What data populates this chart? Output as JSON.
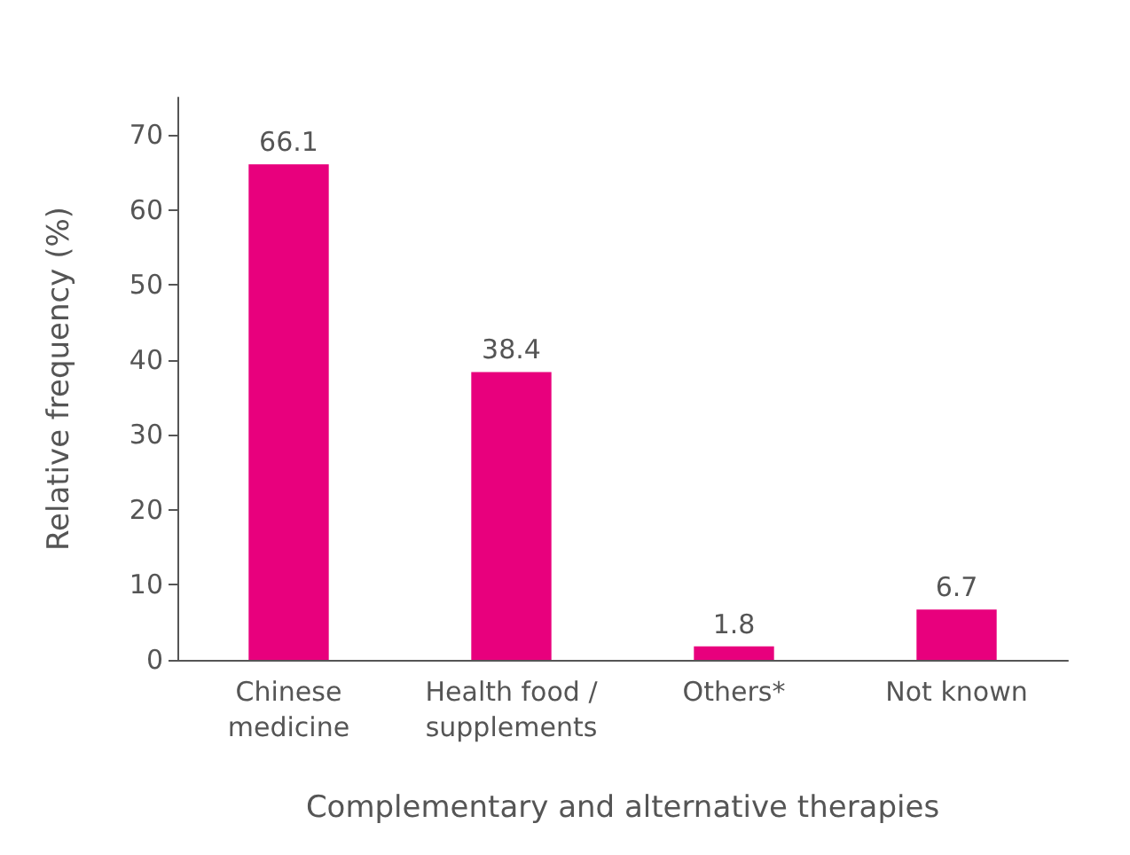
{
  "chart_data": {
    "type": "bar",
    "xlabel": "Complementary and alternative therapies",
    "ylabel": "Relative frequency (%)",
    "categories": [
      "Chinese\nmedicine",
      "Health food /\nsupplements",
      "Others*",
      "Not known"
    ],
    "values": [
      66.1,
      38.4,
      1.8,
      6.7
    ],
    "color": "#e8007d",
    "ylim": [
      0,
      75
    ],
    "yticks": [
      0,
      10,
      20,
      30,
      40,
      50,
      60,
      70
    ],
    "grid": false,
    "data_labels": true
  }
}
